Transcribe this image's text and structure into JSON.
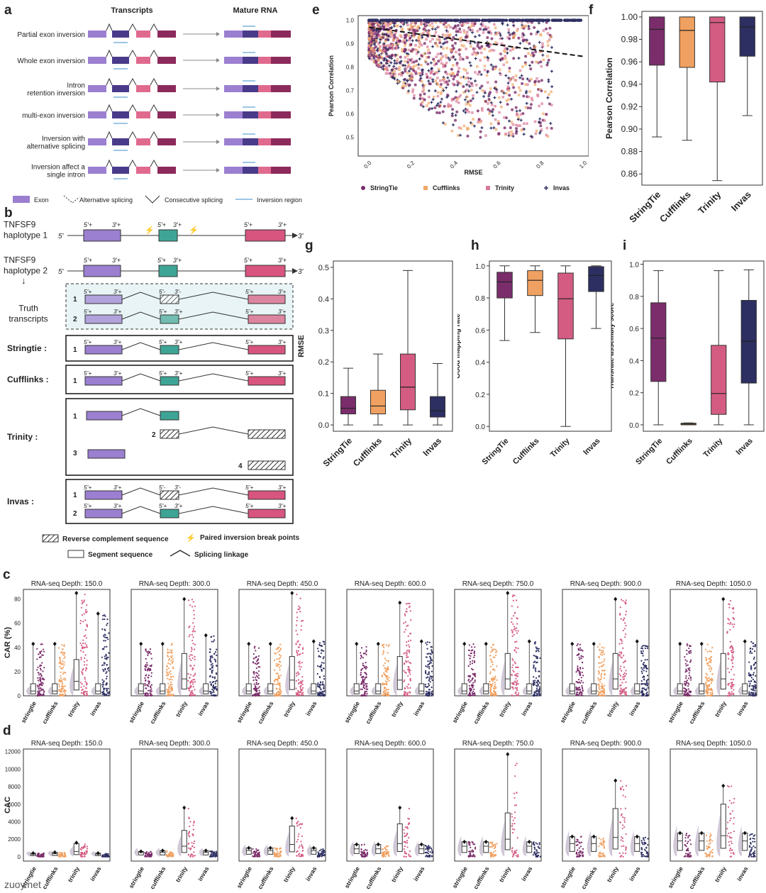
{
  "panel_letters": {
    "a": "a",
    "b": "b",
    "c": "c",
    "d": "d",
    "e": "e",
    "f": "f",
    "g": "g",
    "h": "h",
    "i": "i"
  },
  "panel_a": {
    "col_headers": [
      "Transcripts",
      "Mature RNA"
    ],
    "rows": [
      "Partial exon inversion",
      "Whole exon inversion",
      "Intron\nretention inversion",
      "multi-exon inversion",
      "Inversion with\nalternative splicing",
      "Inversion affect a\nsingle intron"
    ],
    "legend": [
      "Exon",
      "Alternative splicing",
      "Consecutive splicing",
      "Inversion region"
    ]
  },
  "panel_b": {
    "gene_labels": [
      "TNFSF9\nhaplotype 1",
      "TNFSF9\nhaplotype 2"
    ],
    "truth_label": "Truth\ntranscripts",
    "tool_labels": [
      "Stringtie :",
      "Cufflinks :",
      "Trinity :",
      "Invas :"
    ],
    "end5": "5'",
    "end3": "3'",
    "p5": "5'+",
    "p3": "3'+",
    "m5": "5'-",
    "m3": "3'-",
    "nums": [
      "1",
      "2",
      "3",
      "4"
    ],
    "legend": [
      "Reverse complement sequence",
      "Paired inversion break points",
      "Segment sequence",
      "Splicing linkage"
    ]
  },
  "colors": {
    "stringtie": "#7b2d6b",
    "cufflinks": "#f0a060",
    "trinity": "#d45c82",
    "invas": "#2d2f62",
    "exon": "#9b7fd0",
    "teal": "#3ea596",
    "pink": "#d7557e"
  },
  "tools": [
    "StringTie",
    "Cufflinks",
    "Trinity",
    "Invas"
  ],
  "tools_lower": [
    "stringtie",
    "cufflinks",
    "trinity",
    "invas"
  ],
  "panel_e": {
    "xlabel": "RMSE",
    "ylabel": "Pearson Correlation",
    "xticks": [
      "0.0",
      "0.2",
      "0.4",
      "0.6",
      "0.8",
      "1.0"
    ],
    "yticks": [
      "1.0",
      "0.9",
      "0.8",
      "0.7",
      "0.6",
      "0.5"
    ]
  },
  "depth_titles": [
    "RNA-seq Depth: 150.0",
    "RNA-seq Depth: 300.0",
    "RNA-seq Depth: 450.0",
    "RNA-seq Depth: 600.0",
    "RNA-seq Depth: 750.0",
    "RNA-seq Depth: 900.0",
    "RNA-seq Depth: 1050.0"
  ],
  "panel_c": {
    "ylabel": "CAR (%)",
    "yticks": [
      "0",
      "20",
      "40",
      "60",
      "80"
    ]
  },
  "panel_d": {
    "ylabel": "CAC",
    "yticks": [
      "0",
      "2000",
      "4000",
      "6000",
      "8000",
      "10000",
      "12000"
    ]
  },
  "watermark": "zuoy.net",
  "chart_data": [
    {
      "panel": "f",
      "type": "box",
      "ylabel": "Pearson Correlation",
      "categories": [
        "StringTie",
        "Cufflinks",
        "Trinity",
        "Invas"
      ],
      "ylim": [
        0.85,
        1.005
      ],
      "yticks": [
        "0.86",
        "0.88",
        "0.90",
        "0.92",
        "0.94",
        "0.96",
        "0.98",
        "1.00"
      ],
      "boxes": [
        {
          "whislo": 0.893,
          "q1": 0.957,
          "med": 0.989,
          "q3": 1.0,
          "whishi": 1.0
        },
        {
          "whislo": 0.89,
          "q1": 0.955,
          "med": 0.988,
          "q3": 1.0,
          "whishi": 1.0
        },
        {
          "whislo": 0.854,
          "q1": 0.942,
          "med": 0.995,
          "q3": 1.0,
          "whishi": 1.0
        },
        {
          "whislo": 0.912,
          "q1": 0.965,
          "med": 0.991,
          "q3": 1.0,
          "whishi": 1.0
        }
      ]
    },
    {
      "panel": "g",
      "type": "box",
      "ylabel": "RMSE",
      "categories": [
        "StringTie",
        "Cufflinks",
        "Trinity",
        "Invas"
      ],
      "ylim": [
        -0.02,
        0.52
      ],
      "yticks": [
        "0.0",
        "0.1",
        "0.2",
        "0.3",
        "0.4",
        "0.5"
      ],
      "boxes": [
        {
          "whislo": 0.0,
          "q1": 0.035,
          "med": 0.053,
          "q3": 0.09,
          "whishi": 0.18
        },
        {
          "whislo": 0.0,
          "q1": 0.035,
          "med": 0.06,
          "q3": 0.11,
          "whishi": 0.225
        },
        {
          "whislo": 0.0,
          "q1": 0.048,
          "med": 0.12,
          "q3": 0.225,
          "whishi": 0.49
        },
        {
          "whislo": 0.0,
          "q1": 0.025,
          "med": 0.045,
          "q3": 0.09,
          "whishi": 0.195
        }
      ]
    },
    {
      "panel": "h",
      "type": "box",
      "ylabel": "Good mapping rate",
      "categories": [
        "StringTie",
        "Cufflinks",
        "Trinity",
        "Invas"
      ],
      "ylim": [
        -0.03,
        1.03
      ],
      "yticks": [
        "0.0",
        "0.2",
        "0.4",
        "0.6",
        "0.8",
        "1.0"
      ],
      "boxes": [
        {
          "whislo": 0.535,
          "q1": 0.8,
          "med": 0.9,
          "q3": 0.96,
          "whishi": 1.0
        },
        {
          "whislo": 0.585,
          "q1": 0.815,
          "med": 0.91,
          "q3": 0.97,
          "whishi": 1.0
        },
        {
          "whislo": 0.0,
          "q1": 0.545,
          "med": 0.795,
          "q3": 0.955,
          "whishi": 1.0
        },
        {
          "whislo": 0.61,
          "q1": 0.84,
          "med": 0.94,
          "q3": 0.995,
          "whishi": 1.0
        }
      ]
    },
    {
      "panel": "i",
      "type": "box",
      "ylabel": "Transrate assembly score",
      "categories": [
        "StringTie",
        "Cufflinks",
        "Trinity",
        "Invas"
      ],
      "ylim": [
        -0.04,
        1.02
      ],
      "yticks": [
        "0.0",
        "0.2",
        "0.4",
        "0.6",
        "0.8",
        "1.0"
      ],
      "boxes": [
        {
          "whislo": 0.0,
          "q1": 0.27,
          "med": 0.54,
          "q3": 0.76,
          "whishi": 0.96
        },
        {
          "whislo": 0.0,
          "q1": 0.0,
          "med": 0.005,
          "q3": 0.01,
          "whishi": 0.012
        },
        {
          "whislo": 0.0,
          "q1": 0.065,
          "med": 0.195,
          "q3": 0.495,
          "whishi": 0.96
        },
        {
          "whislo": 0.0,
          "q1": 0.26,
          "med": 0.52,
          "q3": 0.775,
          "whishi": 0.965
        }
      ]
    },
    {
      "panel": "e",
      "type": "scatter",
      "xlabel": "RMSE",
      "ylabel": "Pearson Correlation",
      "xlim": [
        -0.05,
        1.02
      ],
      "ylim": [
        0.42,
        1.02
      ],
      "series": [
        {
          "name": "StringTie",
          "marker": "circle"
        },
        {
          "name": "Cufflinks",
          "marker": "square"
        },
        {
          "name": "Trinity",
          "marker": "square"
        },
        {
          "name": "Invas",
          "marker": "plus"
        }
      ],
      "trend_line": {
        "x": [
          0.0,
          1.0
        ],
        "y": [
          0.97,
          0.845
        ]
      }
    },
    {
      "panel": "c",
      "type": "raincloud",
      "ylabel": "CAR (%)",
      "ylim": [
        0,
        88
      ],
      "categories": [
        "stringtie",
        "cufflinks",
        "trinity",
        "invas"
      ],
      "depths": [
        150,
        300,
        450,
        600,
        750,
        900,
        1050
      ],
      "max_values": [
        [
          43,
          43,
          85,
          68
        ],
        [
          43,
          43,
          80,
          50
        ],
        [
          43,
          43,
          85,
          45
        ],
        [
          43,
          43,
          77,
          45
        ],
        [
          43,
          43,
          85,
          45
        ],
        [
          43,
          43,
          80,
          45
        ],
        [
          43,
          43,
          80,
          45
        ]
      ],
      "medians": [
        [
          4,
          4,
          12,
          4
        ],
        [
          4,
          4,
          14,
          4
        ],
        [
          4,
          4,
          13,
          4
        ],
        [
          4,
          4,
          13,
          4
        ],
        [
          4,
          4,
          14,
          4
        ],
        [
          4,
          4,
          14,
          4
        ],
        [
          4,
          4,
          14,
          4
        ]
      ]
    },
    {
      "panel": "d",
      "type": "raincloud",
      "ylabel": "CAC",
      "ylim": [
        -500,
        12300
      ],
      "categories": [
        "stringtie",
        "cufflinks",
        "trinity",
        "invas"
      ],
      "depths": [
        150,
        300,
        450,
        600,
        750,
        900,
        1050
      ],
      "max_values": [
        [
          400,
          500,
          1600,
          400
        ],
        [
          600,
          700,
          5600,
          700
        ],
        [
          1000,
          1000,
          4400,
          1000
        ],
        [
          1400,
          1400,
          5600,
          1400
        ],
        [
          1700,
          1700,
          11700,
          1700
        ],
        [
          2300,
          2300,
          8700,
          2300
        ],
        [
          2700,
          2700,
          8100,
          2700
        ]
      ],
      "medians": [
        [
          300,
          350,
          600,
          300
        ],
        [
          500,
          500,
          1200,
          500
        ],
        [
          700,
          700,
          1400,
          700
        ],
        [
          900,
          900,
          1500,
          900
        ],
        [
          1200,
          1200,
          2000,
          1200
        ],
        [
          1500,
          1500,
          2200,
          1500
        ],
        [
          1800,
          1800,
          2400,
          1800
        ]
      ]
    }
  ]
}
